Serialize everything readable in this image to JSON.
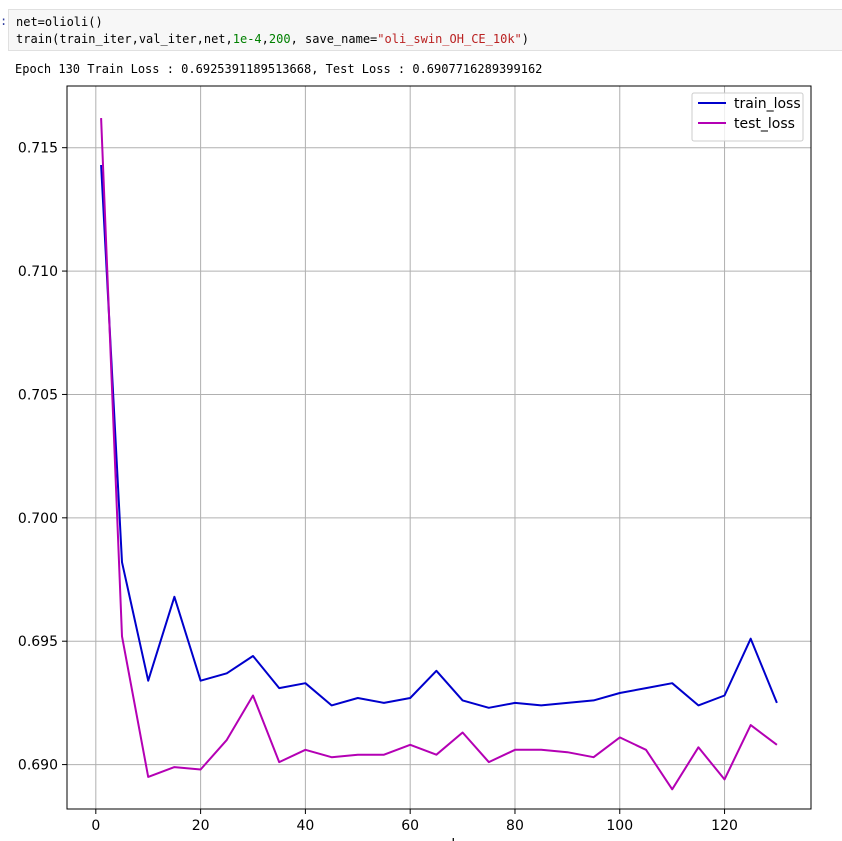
{
  "cell": {
    "prompt": ":",
    "code_line1": "net=olioli()",
    "code_line2": {
      "p1": "train(train_iter,val_iter,net,",
      "n1": "1e-4",
      "p2": ",",
      "n2": "200",
      "p3": ", save_name=",
      "s1": "\"oli_swin_OH_CE_10k\"",
      "p4": ")"
    },
    "output": "Epoch 130 Train Loss : 0.6925391189513668, Test Loss : 0.6907716289399162"
  },
  "chart_data": {
    "type": "line",
    "title": "",
    "xlabel": "epoch",
    "ylabel": "",
    "xlim": [
      -5.5,
      136.5
    ],
    "ylim": [
      0.6882,
      0.7175
    ],
    "xticks": [
      0,
      20,
      40,
      60,
      80,
      100,
      120
    ],
    "yticks": [
      0.69,
      0.695,
      0.7,
      0.705,
      0.71,
      0.715
    ],
    "ytick_labels": [
      "0.690",
      "0.695",
      "0.700",
      "0.705",
      "0.710",
      "0.715"
    ],
    "grid": true,
    "legend_position": "top-right",
    "x": [
      1,
      5,
      10,
      15,
      20,
      25,
      30,
      35,
      40,
      45,
      50,
      55,
      60,
      65,
      70,
      75,
      80,
      85,
      90,
      95,
      100,
      105,
      110,
      115,
      120,
      125,
      130
    ],
    "series": [
      {
        "name": "train_loss",
        "color": "#0000cc",
        "values": [
          0.7143,
          0.6982,
          0.6934,
          0.6968,
          0.6934,
          0.6937,
          0.6944,
          0.6931,
          0.6933,
          0.6924,
          0.6927,
          0.6925,
          0.6927,
          0.6938,
          0.6926,
          0.6923,
          0.6925,
          0.6924,
          0.6925,
          0.6926,
          0.6929,
          0.6931,
          0.6933,
          0.6924,
          0.6928,
          0.6951,
          0.6925
        ]
      },
      {
        "name": "test_loss",
        "color": "#b400b4",
        "values": [
          0.7162,
          0.6952,
          0.6895,
          0.6899,
          0.6898,
          0.691,
          0.6928,
          0.6901,
          0.6906,
          0.6903,
          0.6904,
          0.6904,
          0.6908,
          0.6904,
          0.6913,
          0.6901,
          0.6906,
          0.6906,
          0.6905,
          0.6903,
          0.6911,
          0.6906,
          0.689,
          0.6907,
          0.6894,
          0.6916,
          0.6908
        ]
      }
    ]
  }
}
